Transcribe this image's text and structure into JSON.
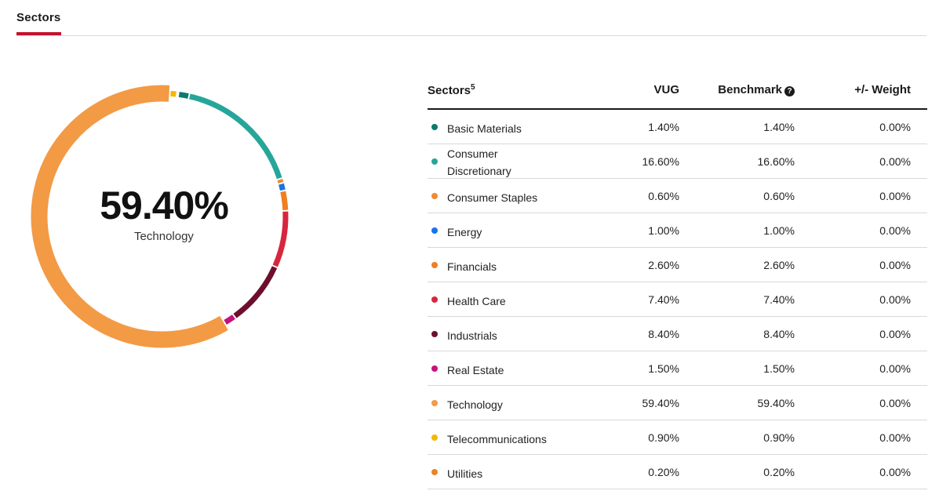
{
  "tab": {
    "label": "Sectors"
  },
  "donut": {
    "center_value": "59.40%",
    "center_label": "Technology"
  },
  "table": {
    "headers": {
      "sector": "Sectors",
      "sector_footnote": "5",
      "vug": "VUG",
      "benchmark": "Benchmark",
      "weight": "+/- Weight"
    },
    "rows": [
      {
        "name": "Basic Materials",
        "color": "#0a7b6c",
        "vug": "1.40%",
        "benchmark": "1.40%",
        "weight": "0.00%",
        "pct": 1.4
      },
      {
        "name": "Consumer Discretionary",
        "color": "#26a69a",
        "vug": "16.60%",
        "benchmark": "16.60%",
        "weight": "0.00%",
        "pct": 16.6
      },
      {
        "name": "Consumer Staples",
        "color": "#ef8a33",
        "vug": "0.60%",
        "benchmark": "0.60%",
        "weight": "0.00%",
        "pct": 0.6
      },
      {
        "name": "Energy",
        "color": "#1a73e8",
        "vug": "1.00%",
        "benchmark": "1.00%",
        "weight": "0.00%",
        "pct": 1.0
      },
      {
        "name": "Financials",
        "color": "#ee7f22",
        "vug": "2.60%",
        "benchmark": "2.60%",
        "weight": "0.00%",
        "pct": 2.6
      },
      {
        "name": "Health Care",
        "color": "#d7263d",
        "vug": "7.40%",
        "benchmark": "7.40%",
        "weight": "0.00%",
        "pct": 7.4
      },
      {
        "name": "Industrials",
        "color": "#6d0f2c",
        "vug": "8.40%",
        "benchmark": "8.40%",
        "weight": "0.00%",
        "pct": 8.4
      },
      {
        "name": "Real Estate",
        "color": "#c4127e",
        "vug": "1.50%",
        "benchmark": "1.50%",
        "weight": "0.00%",
        "pct": 1.5
      },
      {
        "name": "Technology",
        "color": "#f39a45",
        "vug": "59.40%",
        "benchmark": "59.40%",
        "weight": "0.00%",
        "pct": 59.4
      },
      {
        "name": "Telecommunications",
        "color": "#f5b800",
        "vug": "0.90%",
        "benchmark": "0.90%",
        "weight": "0.00%",
        "pct": 0.9
      },
      {
        "name": "Utilities",
        "color": "#e8842a",
        "vug": "0.20%",
        "benchmark": "0.20%",
        "weight": "0.00%",
        "pct": 0.2
      }
    ]
  }
}
